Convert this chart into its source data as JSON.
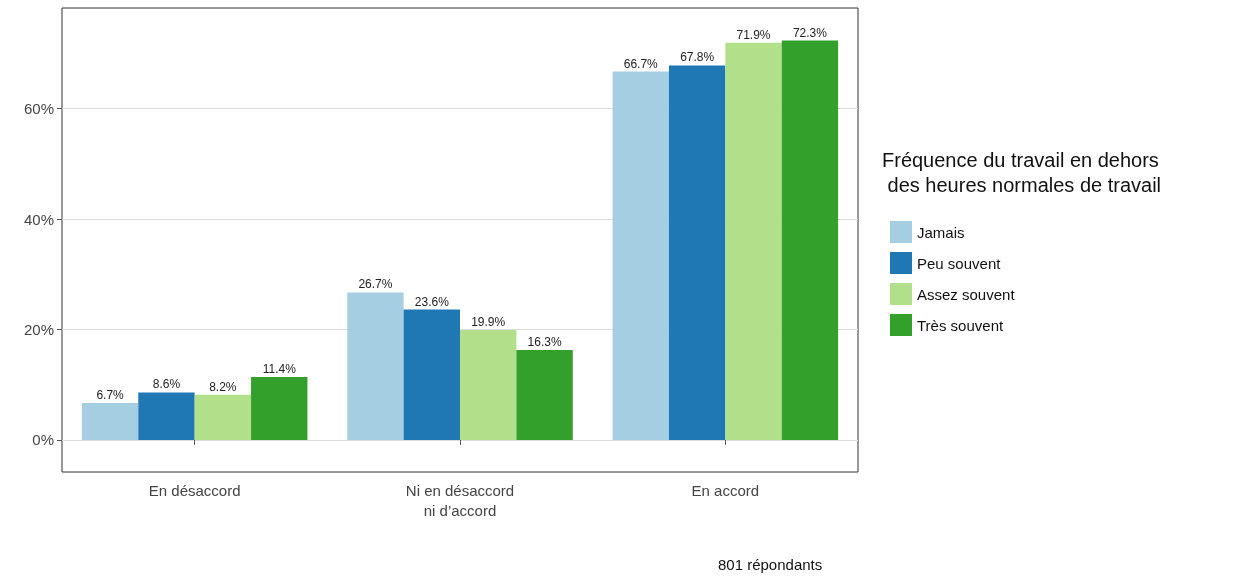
{
  "chart_data": {
    "type": "bar",
    "categories": [
      "En désaccord",
      "Ni en désaccord\nni d’accord",
      "En accord"
    ],
    "series": [
      {
        "name": "Jamais",
        "color": "#a6cee3",
        "values": [
          6.7,
          26.7,
          66.7
        ],
        "value_labels": [
          "6.7%",
          "26.7%",
          "66.7%"
        ]
      },
      {
        "name": "Peu souvent",
        "color": "#1f78b4",
        "values": [
          8.6,
          23.6,
          67.8
        ],
        "value_labels": [
          "8.6%",
          "23.6%",
          "67.8%"
        ]
      },
      {
        "name": "Assez souvent",
        "color": "#b2df8a",
        "values": [
          8.2,
          19.9,
          71.9
        ],
        "value_labels": [
          "8.2%",
          "19.9%",
          "71.9%"
        ]
      },
      {
        "name": "Très souvent",
        "color": "#33a02c",
        "values": [
          11.4,
          16.3,
          72.3
        ],
        "value_labels": [
          "11.4%",
          "16.3%",
          "72.3%"
        ]
      }
    ],
    "ylim": [
      -5.8,
      78.2
    ],
    "yticks": [
      {
        "value": 0,
        "label": "0%"
      },
      {
        "value": 20,
        "label": "20%"
      },
      {
        "value": 40,
        "label": "40%"
      },
      {
        "value": 60,
        "label": "60%"
      }
    ],
    "grid": "y",
    "legend": "right",
    "legend_title": "Fréquence du travail en dehors\n des heures normales de travail",
    "annotations": [
      "801 répondants"
    ]
  }
}
